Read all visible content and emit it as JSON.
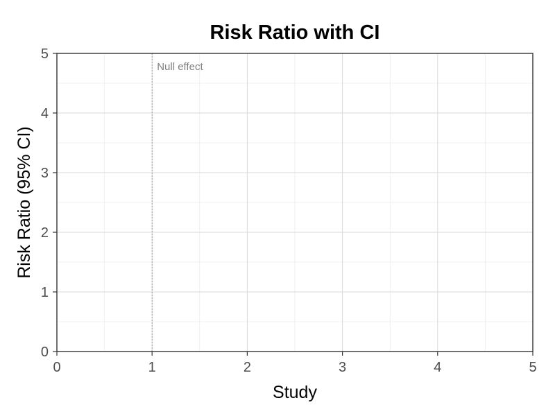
{
  "chart_data": {
    "type": "scatter",
    "title": "Risk Ratio with CI",
    "xlabel": "Study",
    "ylabel": "Risk Ratio (95% CI)",
    "xlim": [
      0,
      5
    ],
    "ylim": [
      0,
      5
    ],
    "x_ticks": [
      "0",
      "1",
      "2",
      "3",
      "4",
      "5"
    ],
    "y_ticks": [
      "0",
      "1",
      "2",
      "3",
      "4",
      "5"
    ],
    "grid": true,
    "series": [],
    "reference_line": {
      "orientation": "vertical",
      "x": 1,
      "style": "dotted",
      "label": "Null effect"
    },
    "colors": {
      "grid": "#e5e5e5",
      "axis": "#333333",
      "reference": "#999999",
      "annotation": "#808080"
    }
  }
}
